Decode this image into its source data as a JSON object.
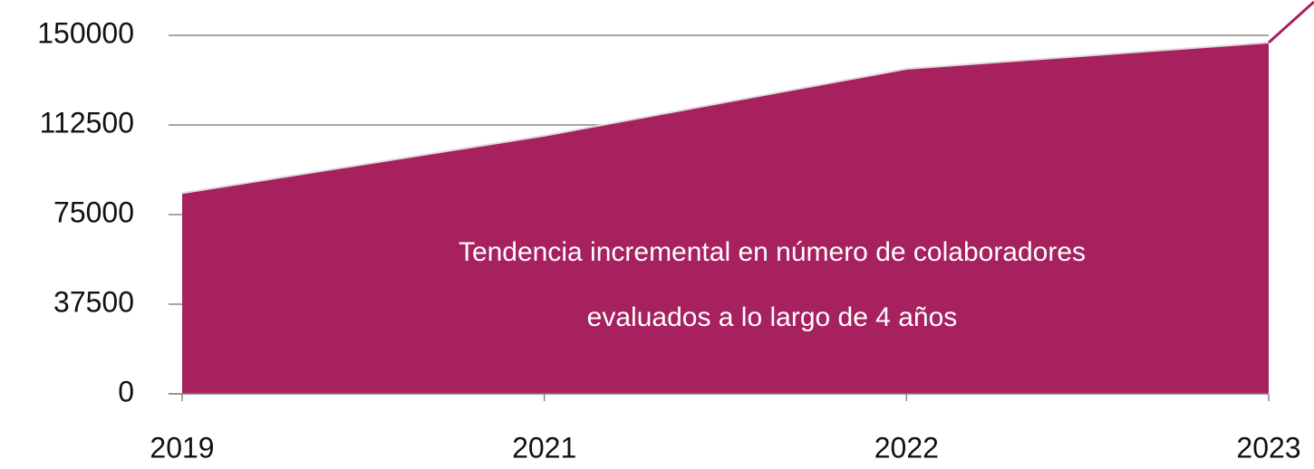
{
  "chart_data": {
    "type": "area",
    "categories": [
      "2019",
      "2021",
      "2022",
      "2023"
    ],
    "values": [
      84000,
      108000,
      136000,
      147000
    ],
    "color": "#a8215f",
    "ylim": [
      0,
      150000
    ],
    "yticks": [
      0,
      37500,
      75000,
      112500,
      150000
    ],
    "grid": true,
    "annotations": [
      "Tendencia incremental en número de colaboradores",
      "evaluados a lo largo de 4 años"
    ]
  }
}
